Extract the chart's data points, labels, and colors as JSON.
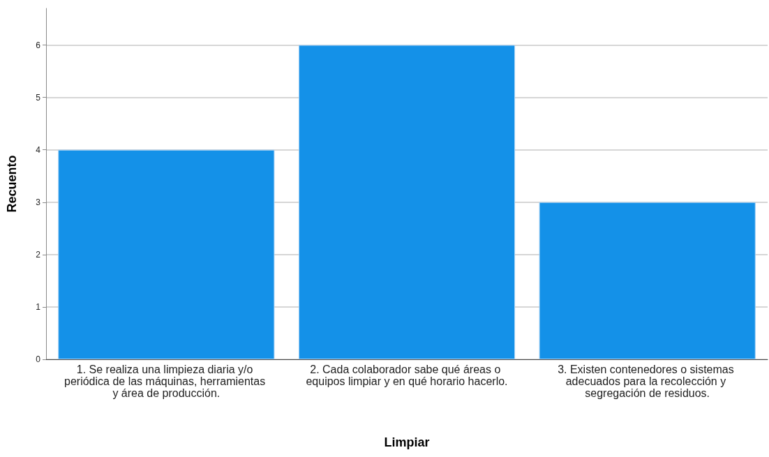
{
  "chart_data": {
    "type": "bar",
    "xlabel": "Limpiar",
    "ylabel": "Recuento",
    "categories": [
      "1. Se realiza una limpieza diaria y/o periódica de las máquinas, herramientas y área de producción.",
      "2. Cada colaborador sabe qué áreas o equipos limpiar y en qué horario hacerlo.",
      "3. Existen contenedores o sistemas adecuados para la recolección y segregación de residuos."
    ],
    "values": [
      4,
      6,
      3
    ],
    "color": "#1491e8",
    "ylim": [
      0,
      6.7
    ],
    "yticks": [
      0,
      1,
      2,
      3,
      4,
      5,
      6
    ],
    "grid": "y"
  }
}
